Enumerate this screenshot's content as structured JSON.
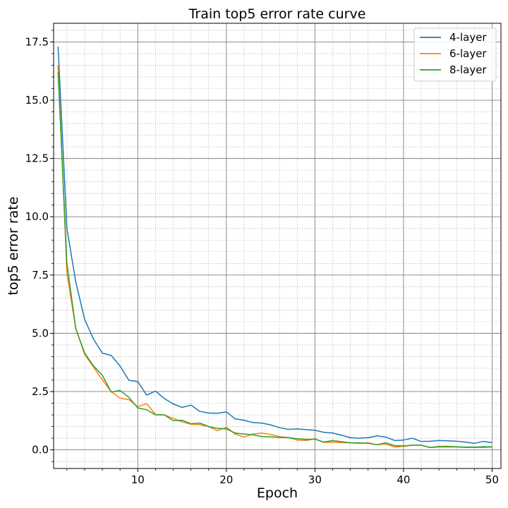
{
  "chart_data": {
    "type": "line",
    "title": "Train top5 error rate curve",
    "xlabel": "Epoch",
    "ylabel": "top5 error rate",
    "xlim": [
      0.5,
      51
    ],
    "ylim": [
      -0.8,
      18.3
    ],
    "xticks": [
      10,
      20,
      30,
      40,
      50
    ],
    "yticks": [
      0.0,
      2.5,
      5.0,
      7.5,
      10.0,
      12.5,
      15.0,
      17.5
    ],
    "ytick_labels": [
      "0.0",
      "2.5",
      "5.0",
      "7.5",
      "10.0",
      "12.5",
      "15.0",
      "17.5"
    ],
    "grid": true,
    "legend_position": "top-right",
    "x": [
      1,
      2,
      3,
      4,
      5,
      6,
      7,
      8,
      9,
      10,
      11,
      12,
      13,
      14,
      15,
      16,
      17,
      18,
      19,
      20,
      21,
      22,
      23,
      24,
      25,
      26,
      27,
      28,
      29,
      30,
      31,
      32,
      33,
      34,
      35,
      36,
      37,
      38,
      39,
      40,
      41,
      42,
      43,
      44,
      45,
      46,
      47,
      48,
      49,
      50
    ],
    "series": [
      {
        "name": "4-layer",
        "color": "#1f77b4",
        "values": [
          17.3,
          9.5,
          7.2,
          5.6,
          4.75,
          4.15,
          4.05,
          3.6,
          2.98,
          2.93,
          2.35,
          2.52,
          2.2,
          1.97,
          1.82,
          1.92,
          1.65,
          1.58,
          1.57,
          1.63,
          1.33,
          1.27,
          1.17,
          1.15,
          1.07,
          0.95,
          0.88,
          0.9,
          0.87,
          0.84,
          0.75,
          0.72,
          0.63,
          0.52,
          0.5,
          0.52,
          0.6,
          0.55,
          0.4,
          0.42,
          0.5,
          0.36,
          0.37,
          0.4,
          0.39,
          0.37,
          0.33,
          0.28,
          0.36,
          0.31
        ]
      },
      {
        "name": "6-layer",
        "color": "#ff7f0e",
        "values": [
          16.5,
          7.6,
          5.2,
          4.1,
          3.55,
          3.0,
          2.5,
          2.22,
          2.15,
          1.85,
          1.98,
          1.52,
          1.5,
          1.35,
          1.2,
          1.1,
          1.08,
          1.0,
          0.82,
          0.97,
          0.68,
          0.55,
          0.68,
          0.72,
          0.66,
          0.57,
          0.53,
          0.42,
          0.4,
          0.47,
          0.32,
          0.33,
          0.31,
          0.3,
          0.28,
          0.3,
          0.22,
          0.25,
          0.12,
          0.15,
          0.2,
          0.2,
          0.1,
          0.12,
          0.12,
          0.12,
          0.1,
          0.1,
          0.1,
          0.12
        ]
      },
      {
        "name": "8-layer",
        "color": "#2ca02c",
        "values": [
          16.2,
          8.0,
          5.2,
          4.15,
          3.6,
          3.2,
          2.48,
          2.55,
          2.25,
          1.8,
          1.72,
          1.5,
          1.5,
          1.25,
          1.27,
          1.12,
          1.15,
          1.0,
          0.92,
          0.9,
          0.72,
          0.68,
          0.65,
          0.57,
          0.56,
          0.53,
          0.52,
          0.48,
          0.45,
          0.46,
          0.33,
          0.4,
          0.35,
          0.3,
          0.3,
          0.28,
          0.22,
          0.3,
          0.18,
          0.17,
          0.2,
          0.2,
          0.1,
          0.15,
          0.15,
          0.13,
          0.12,
          0.12,
          0.13,
          0.13
        ]
      }
    ]
  }
}
